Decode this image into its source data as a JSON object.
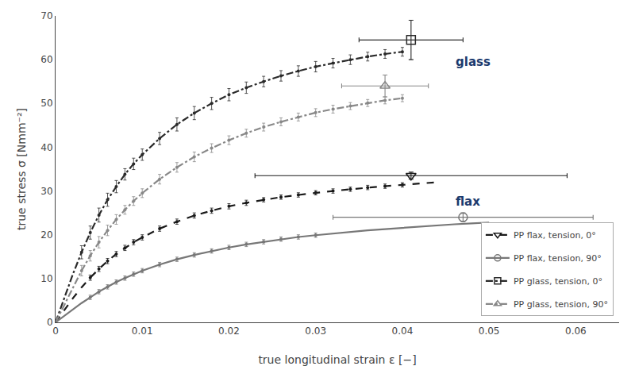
{
  "chart_data": {
    "type": "line",
    "xlabel": "true longitudinal strain ε [−]",
    "ylabel": "true stress σ [Nmm⁻²]",
    "xlim": [
      0,
      0.065
    ],
    "ylim": [
      0,
      70
    ],
    "xticks": [
      0,
      0.01,
      0.02,
      0.03,
      0.04,
      0.05,
      0.06
    ],
    "yticks": [
      0,
      10,
      20,
      30,
      40,
      50,
      60,
      70
    ],
    "grid": false,
    "legend": "lower right",
    "annotations": [
      {
        "x": 0.046,
        "y": 57.5,
        "text": "glass",
        "color": "#1a3a6e"
      },
      {
        "x": 0.046,
        "y": 25.5,
        "text": "flax",
        "color": "#1a3a6e"
      }
    ],
    "series": [
      {
        "name": "PP flax, tension, 0°",
        "color": "#1a1a1a",
        "line_style": "dashed",
        "marker": "triangle-down",
        "x": [
          0.0,
          0.001,
          0.002,
          0.003,
          0.004,
          0.005,
          0.006,
          0.007,
          0.008,
          0.009,
          0.01,
          0.012,
          0.014,
          0.016,
          0.018,
          0.02,
          0.022,
          0.024,
          0.026,
          0.028,
          0.03,
          0.032,
          0.034,
          0.036,
          0.038,
          0.04,
          0.042,
          0.044
        ],
        "values": [
          0.0,
          2.8,
          5.5,
          8.0,
          10.2,
          12.2,
          14.0,
          15.6,
          17.0,
          18.3,
          19.4,
          21.4,
          23.0,
          24.4,
          25.5,
          26.5,
          27.3,
          28.0,
          28.6,
          29.1,
          29.6,
          30.0,
          30.4,
          30.8,
          31.1,
          31.4,
          31.7,
          32.0
        ],
        "points": {
          "x": [
            0.004,
            0.005,
            0.006,
            0.007,
            0.008,
            0.009,
            0.01,
            0.012,
            0.014,
            0.016,
            0.018,
            0.02,
            0.022,
            0.024,
            0.026,
            0.028,
            0.03,
            0.032,
            0.034,
            0.036,
            0.038,
            0.04
          ],
          "values": [
            10.2,
            12.2,
            14.0,
            15.6,
            17.0,
            18.3,
            19.4,
            21.4,
            23.0,
            24.4,
            25.5,
            26.5,
            27.3,
            28.0,
            28.6,
            29.1,
            29.6,
            30.0,
            30.4,
            30.8,
            31.1,
            31.4
          ],
          "error": [
            0.6,
            0.6,
            0.6,
            0.6,
            0.6,
            0.6,
            0.6,
            0.6,
            0.6,
            0.6,
            0.6,
            0.6,
            0.6,
            0.5,
            0.5,
            0.5,
            0.5,
            0.5,
            0.5,
            0.5,
            0.5,
            0.5
          ]
        },
        "mean": {
          "x": [
            0.041
          ],
          "values": [
            33.5
          ],
          "x_error": [
            0.018
          ],
          "error": [
            0.8
          ]
        }
      },
      {
        "name": "PP flax, tension, 90°",
        "color": "#777777",
        "line_style": "solid",
        "marker": "circle",
        "x": [
          0.0,
          0.001,
          0.002,
          0.003,
          0.004,
          0.005,
          0.006,
          0.007,
          0.008,
          0.009,
          0.01,
          0.012,
          0.014,
          0.016,
          0.018,
          0.02,
          0.022,
          0.024,
          0.026,
          0.028,
          0.03,
          0.032,
          0.034,
          0.036,
          0.038,
          0.04,
          0.042,
          0.044,
          0.046,
          0.048,
          0.05
        ],
        "values": [
          0.0,
          1.5,
          3.0,
          4.4,
          5.7,
          7.0,
          8.1,
          9.2,
          10.1,
          11.0,
          11.8,
          13.2,
          14.4,
          15.4,
          16.3,
          17.1,
          17.8,
          18.4,
          19.0,
          19.5,
          19.9,
          20.3,
          20.7,
          21.0,
          21.3,
          21.6,
          21.9,
          22.2,
          22.4,
          22.6,
          22.8
        ],
        "points": {
          "x": [
            0.004,
            0.005,
            0.006,
            0.007,
            0.008,
            0.009,
            0.01,
            0.012,
            0.014,
            0.016,
            0.018,
            0.02,
            0.022,
            0.024,
            0.026,
            0.028,
            0.03
          ],
          "values": [
            5.7,
            7.0,
            8.1,
            9.2,
            10.1,
            11.0,
            11.8,
            13.2,
            14.4,
            15.4,
            16.3,
            17.1,
            17.8,
            18.4,
            19.0,
            19.5,
            19.9
          ],
          "error": [
            0.5,
            0.5,
            0.5,
            0.5,
            0.5,
            0.5,
            0.5,
            0.5,
            0.5,
            0.5,
            0.5,
            0.5,
            0.5,
            0.5,
            0.5,
            0.5,
            0.5
          ]
        },
        "mean": {
          "x": [
            0.047
          ],
          "values": [
            24.0
          ],
          "x_error": [
            0.015
          ],
          "error": [
            1.0
          ]
        }
      },
      {
        "name": "PP glass, tension, 0°",
        "color": "#2a2a2a",
        "line_style": "dashdot",
        "marker": "square",
        "x": [
          0.0,
          0.001,
          0.002,
          0.003,
          0.004,
          0.005,
          0.006,
          0.007,
          0.008,
          0.009,
          0.01,
          0.012,
          0.014,
          0.016,
          0.018,
          0.02,
          0.022,
          0.024,
          0.026,
          0.028,
          0.03,
          0.032,
          0.034,
          0.036,
          0.038,
          0.04
        ],
        "values": [
          0.0,
          5.5,
          11.0,
          16.0,
          20.5,
          24.5,
          28.0,
          31.0,
          33.8,
          36.2,
          38.3,
          42.0,
          45.2,
          47.8,
          50.0,
          52.0,
          53.6,
          55.0,
          56.3,
          57.4,
          58.4,
          59.2,
          60.0,
          60.7,
          61.3,
          61.8
        ],
        "points": {
          "x": [
            0.003,
            0.004,
            0.005,
            0.006,
            0.007,
            0.008,
            0.009,
            0.01,
            0.012,
            0.014,
            0.016,
            0.018,
            0.02,
            0.022,
            0.024,
            0.026,
            0.028,
            0.03,
            0.032,
            0.034,
            0.036,
            0.038,
            0.04
          ],
          "values": [
            16.0,
            20.5,
            24.5,
            28.0,
            31.0,
            33.8,
            36.2,
            38.3,
            42.0,
            45.2,
            47.8,
            50.0,
            52.0,
            53.6,
            55.0,
            56.3,
            57.4,
            58.4,
            59.2,
            60.0,
            60.7,
            61.3,
            61.8
          ],
          "error": [
            1.5,
            1.5,
            1.6,
            1.5,
            1.4,
            1.3,
            1.3,
            1.3,
            1.4,
            1.5,
            1.5,
            1.4,
            1.4,
            1.3,
            1.2,
            1.2,
            1.2,
            1.2,
            1.1,
            1.1,
            1.0,
            1.0,
            1.0
          ]
        },
        "mean": {
          "x": [
            0.041
          ],
          "values": [
            64.5
          ],
          "x_error": [
            0.006
          ],
          "error": [
            4.5
          ]
        }
      },
      {
        "name": "PP glass, tension, 90°",
        "color": "#888888",
        "line_style": "dashdot",
        "marker": "triangle-up",
        "x": [
          0.0,
          0.001,
          0.002,
          0.003,
          0.004,
          0.005,
          0.006,
          0.007,
          0.008,
          0.009,
          0.01,
          0.012,
          0.014,
          0.016,
          0.018,
          0.02,
          0.022,
          0.024,
          0.026,
          0.028,
          0.03,
          0.032,
          0.034,
          0.036,
          0.038,
          0.04
        ],
        "values": [
          0.0,
          4.0,
          8.0,
          11.8,
          15.2,
          18.3,
          21.0,
          23.5,
          25.7,
          27.7,
          29.5,
          32.7,
          35.4,
          37.8,
          39.8,
          41.6,
          43.2,
          44.6,
          45.8,
          46.9,
          47.9,
          48.7,
          49.4,
          50.1,
          50.7,
          51.2
        ],
        "points": {
          "x": [
            0.003,
            0.004,
            0.005,
            0.006,
            0.007,
            0.008,
            0.009,
            0.01,
            0.012,
            0.014,
            0.016,
            0.018,
            0.02,
            0.022,
            0.024,
            0.026,
            0.028,
            0.03,
            0.032,
            0.034,
            0.036,
            0.038,
            0.04
          ],
          "values": [
            11.8,
            15.2,
            18.3,
            21.0,
            23.5,
            25.7,
            27.7,
            29.5,
            32.7,
            35.4,
            37.8,
            39.8,
            41.6,
            43.2,
            44.6,
            45.8,
            46.9,
            47.9,
            48.7,
            49.4,
            50.1,
            50.7,
            51.2
          ],
          "error": [
            1.2,
            1.2,
            1.3,
            1.2,
            1.1,
            1.0,
            1.0,
            1.0,
            1.1,
            1.1,
            1.1,
            1.0,
            1.0,
            0.9,
            0.9,
            0.9,
            0.9,
            0.9,
            0.9,
            0.8,
            0.8,
            0.8,
            0.8
          ]
        },
        "mean": {
          "x": [
            0.038
          ],
          "values": [
            54.0
          ],
          "x_error": [
            0.005
          ],
          "error": [
            2.5
          ]
        }
      }
    ]
  }
}
